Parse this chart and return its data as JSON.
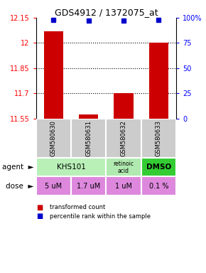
{
  "title": "GDS4912 / 1372075_at",
  "samples": [
    "GSM580630",
    "GSM580631",
    "GSM580632",
    "GSM580633"
  ],
  "bar_values": [
    12.07,
    11.575,
    11.7,
    12.0
  ],
  "percentile_values": [
    98,
    97,
    97,
    98
  ],
  "ylim_left": [
    11.55,
    12.15
  ],
  "ylim_right": [
    0,
    100
  ],
  "yticks_left": [
    11.55,
    11.7,
    11.85,
    12.0,
    12.15
  ],
  "yticks_right": [
    0,
    25,
    50,
    75,
    100
  ],
  "ytick_labels_left": [
    "11.55",
    "11.7",
    "11.85",
    "12",
    "12.15"
  ],
  "ytick_labels_right": [
    "0",
    "25",
    "50",
    "75",
    "100%"
  ],
  "bar_color": "#cc0000",
  "percentile_color": "#0000cc",
  "agents": [
    "KHS101",
    "KHS101",
    "retinoic\nacid",
    "DMSO"
  ],
  "agent_spans": [
    [
      0,
      1
    ],
    [
      2
    ],
    [
      3
    ]
  ],
  "agent_labels": [
    "KHS101",
    "retinoic\nacid",
    "DMSO"
  ],
  "agent_colors": [
    "#b8f0b8",
    "#b0eab0",
    "#33cc33"
  ],
  "doses": [
    "5 uM",
    "1.7 uM",
    "1 uM",
    "0.1 %"
  ],
  "dose_colors": [
    "#dd88dd",
    "#dd88dd",
    "#ffffff",
    "#ffffff"
  ],
  "dose_color_all": "#dd88dd",
  "sample_bg_color": "#cccccc",
  "legend_bar_color": "#cc0000",
  "legend_percentile_color": "#0000cc",
  "legend_text1": "transformed count",
  "legend_text2": "percentile rank within the sample",
  "agent_label": "agent",
  "dose_label": "dose"
}
